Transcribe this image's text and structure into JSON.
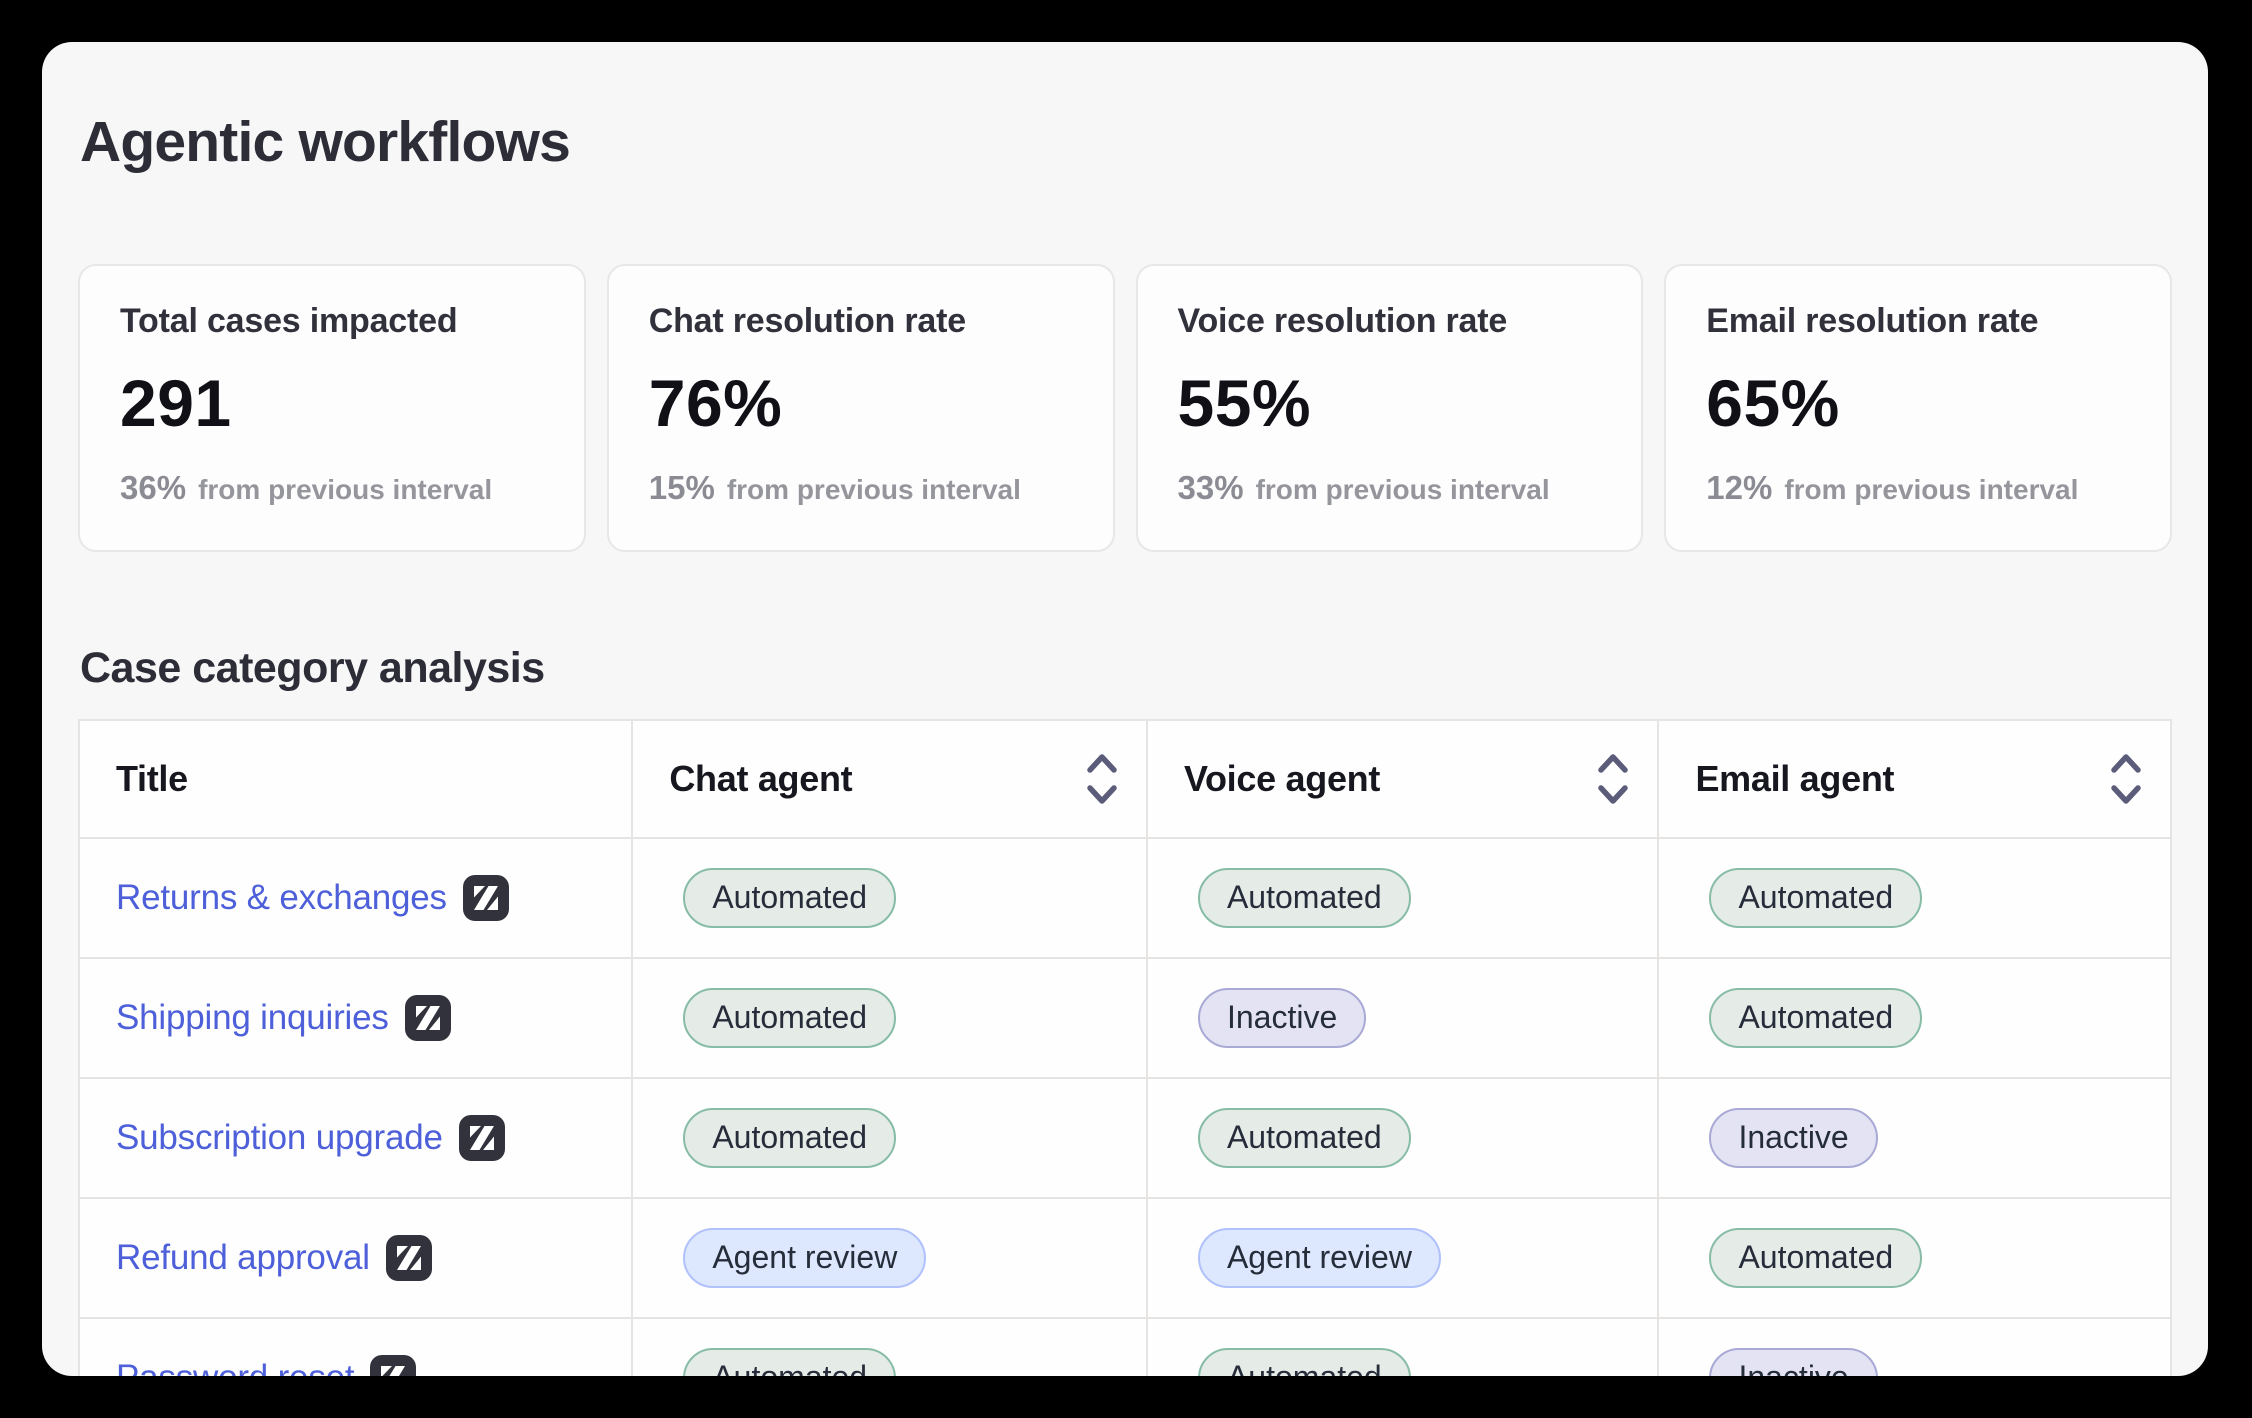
{
  "page": {
    "title": "Agentic workflows"
  },
  "stats": [
    {
      "label": "Total cases impacted",
      "value": "291",
      "delta": "36%",
      "delta_note": "from previous interval"
    },
    {
      "label": "Chat resolution rate",
      "value": "76%",
      "delta": "15%",
      "delta_note": "from previous interval"
    },
    {
      "label": "Voice resolution rate",
      "value": "55%",
      "delta": "33%",
      "delta_note": "from previous interval"
    },
    {
      "label": "Email resolution rate",
      "value": "65%",
      "delta": "12%",
      "delta_note": "from previous interval"
    }
  ],
  "section": {
    "heading": "Case category analysis"
  },
  "table": {
    "columns": [
      {
        "key": "title",
        "label": "Title",
        "sortable": false
      },
      {
        "key": "chat",
        "label": "Chat agent",
        "sortable": true
      },
      {
        "key": "voice",
        "label": "Voice agent",
        "sortable": true
      },
      {
        "key": "email",
        "label": "Email agent",
        "sortable": true
      }
    ],
    "rows": [
      {
        "title": "Returns & exchanges",
        "chat": "Automated",
        "voice": "Automated",
        "email": "Automated"
      },
      {
        "title": "Shipping inquiries",
        "chat": "Automated",
        "voice": "Inactive",
        "email": "Automated"
      },
      {
        "title": "Subscription upgrade",
        "chat": "Automated",
        "voice": "Automated",
        "email": "Inactive"
      },
      {
        "title": "Refund approval",
        "chat": "Agent review",
        "voice": "Agent review",
        "email": "Automated"
      },
      {
        "title": "Password reset",
        "chat": "Automated",
        "voice": "Automated",
        "email": "Inactive"
      }
    ]
  },
  "badge_styles": {
    "Automated": {
      "bg": "#e5ebe7",
      "border": "#87bca6",
      "text": "#262d3a"
    },
    "Inactive": {
      "bg": "#e3e3f4",
      "border": "#a9a9d6",
      "text": "#262d3a"
    },
    "Agent review": {
      "bg": "#dde7fe",
      "border": "#b0c1fb",
      "text": "#262d3a"
    }
  },
  "colors": {
    "page_background": "#000000",
    "card_background": "#f7f7f8",
    "tile_background": "#fdfdfe",
    "tile_border": "#e7e7ea",
    "grid_border": "#e6e4e2",
    "heading": "#2d2d38",
    "link_accent": "#4d5fd9",
    "zendesk_icon_background": "#31323b",
    "sort_icon": "#5b5b7a"
  },
  "icons": {
    "zendesk": "zendesk-logo",
    "sort": "sort-chevrons"
  }
}
